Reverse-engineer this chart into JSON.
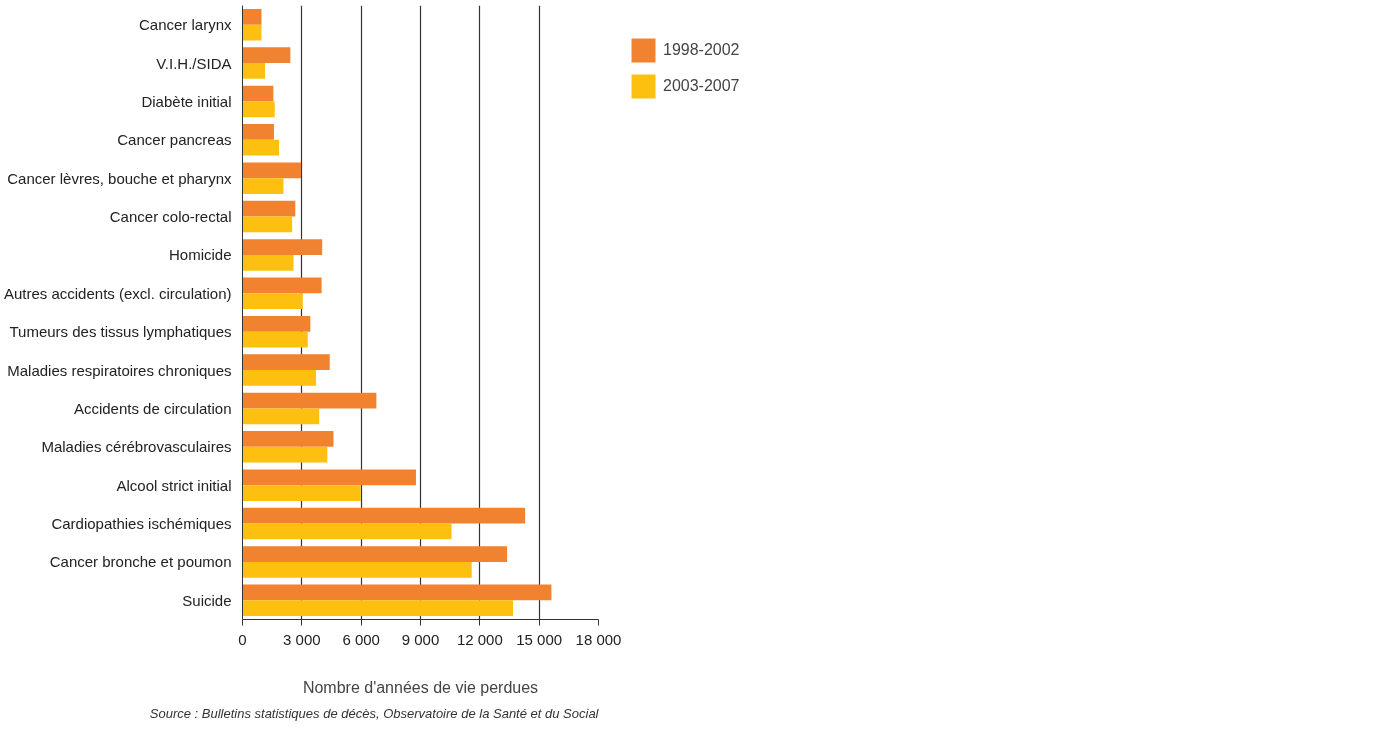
{
  "chart_data": {
    "type": "bar",
    "orientation": "horizontal",
    "xlabel": "Nombre d'années de vie perdues",
    "categories": [
      "Cancer larynx",
      "V.I.H./SIDA",
      "Diabète initial",
      "Cancer pancreas",
      "Cancer lèvres, bouche et pharynx",
      "Cancer colo-rectal",
      "Homicide",
      "Autres accidents (excl. circulation)",
      "Tumeurs des tissus lymphatiques",
      "Maladies respiratoires chroniques",
      "Accidents de circulation",
      "Maladies cérébrovasculaires",
      "Alcool strict initial",
      "Cardiopathies ischémiques",
      "Cancer bronche et poumon",
      "Suicide"
    ],
    "series": [
      {
        "name": "1998-2002",
        "color": "#f08230",
        "values": [
          960,
          2420,
          1560,
          1590,
          2960,
          2670,
          4030,
          4000,
          3430,
          4410,
          6770,
          4600,
          8770,
          14290,
          13380,
          15620
        ]
      },
      {
        "name": "2003-2007",
        "color": "#fdc010",
        "values": [
          960,
          1140,
          1630,
          1850,
          2070,
          2510,
          2580,
          3050,
          3300,
          3720,
          3880,
          4290,
          5980,
          10570,
          11590,
          13680
        ]
      }
    ],
    "xlim": [
      0,
      18000
    ],
    "xticks": [
      {
        "value": 0,
        "label": "0"
      },
      {
        "value": 3000,
        "label": "3 000"
      },
      {
        "value": 6000,
        "label": "6 000"
      },
      {
        "value": 9000,
        "label": "9 000"
      },
      {
        "value": 12000,
        "label": "12 000"
      },
      {
        "value": 15000,
        "label": "15 000"
      },
      {
        "value": 18000,
        "label": "18 000"
      }
    ],
    "grid": "x",
    "legend": "top right",
    "annotations": [
      "Source : Bulletins statistiques de décès, Observatoire de la Santé et du Social"
    ]
  }
}
